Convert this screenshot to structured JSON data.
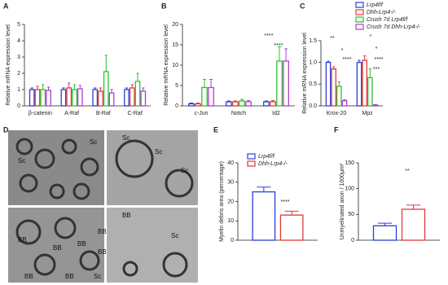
{
  "chart_data": [
    {
      "type": "bar",
      "panel": "A",
      "ylabel": "Relative mRNA expression level",
      "categories": [
        "β-catenin",
        "A-Raf",
        "B-Raf",
        "C-Raf"
      ],
      "series": [
        {
          "color": "#2b3fd6",
          "values": [
            1.0,
            1.0,
            1.0,
            1.0
          ],
          "errors": [
            0.1,
            0.1,
            0.1,
            0.1
          ]
        },
        {
          "color": "#e03a3a",
          "values": [
            1.0,
            1.1,
            0.9,
            1.1
          ],
          "errors": [
            0.2,
            0.3,
            0.2,
            0.2
          ]
        },
        {
          "color": "#2fbf2f",
          "values": [
            1.0,
            1.0,
            2.1,
            1.5
          ],
          "errors": [
            0.3,
            0.3,
            1.0,
            0.5
          ]
        },
        {
          "color": "#b03cd0",
          "values": [
            0.95,
            1.05,
            0.8,
            0.9
          ],
          "errors": [
            0.2,
            0.2,
            0.2,
            0.2
          ]
        }
      ],
      "ylim": [
        0,
        5
      ],
      "yticks": [
        0,
        1,
        2,
        3,
        4,
        5
      ]
    },
    {
      "type": "bar",
      "panel": "B",
      "ylabel": "Relative mRNA expression level",
      "categories": [
        "c-Jun",
        "Notch",
        "Id2"
      ],
      "series": [
        {
          "color": "#2b3fd6",
          "values": [
            0.5,
            1.0,
            1.0
          ],
          "errors": [
            0.2,
            0.2,
            0.2
          ]
        },
        {
          "color": "#e03a3a",
          "values": [
            0.5,
            1.0,
            1.0
          ],
          "errors": [
            0.2,
            0.2,
            0.3
          ]
        },
        {
          "color": "#2fbf2f",
          "values": [
            4.5,
            1.2,
            11.0
          ],
          "errors": [
            2.0,
            0.4,
            3.5
          ]
        },
        {
          "color": "#b03cd0",
          "values": [
            4.5,
            1.0,
            11.0
          ],
          "errors": [
            2.0,
            0.3,
            3.0
          ]
        }
      ],
      "ylim": [
        0,
        20
      ],
      "yticks": [
        0,
        5,
        10,
        15,
        20
      ],
      "annotations": [
        "****",
        "****"
      ]
    },
    {
      "type": "bar",
      "panel": "C",
      "ylabel": "Relative mRNA expression level",
      "categories": [
        "Krox-20",
        "Mpz"
      ],
      "series": [
        {
          "name": "Lrp4f/f",
          "color": "#2b3fd6",
          "values": [
            1.0,
            1.0
          ],
          "errors": [
            0.03,
            0.05
          ]
        },
        {
          "name": "Dhh-Lrp4-/-",
          "color": "#e03a3a",
          "values": [
            0.85,
            1.05
          ],
          "errors": [
            0.05,
            0.1
          ]
        },
        {
          "name": "Crush 7d Lrp4f/f",
          "color": "#2fbf2f",
          "values": [
            0.45,
            0.65
          ],
          "errors": [
            0.1,
            0.2
          ]
        },
        {
          "name": "Crush 7d Dhh-Lrp4-/-",
          "color": "#b03cd0",
          "values": [
            0.12,
            0.02
          ],
          "errors": [
            0.02,
            0.01
          ]
        }
      ],
      "ylim": [
        0,
        1.5
      ],
      "yticks": [
        {
          "value": 0,
          "label": "0.0"
        },
        0.5,
        {
          "value": 1,
          "label": "1.0"
        },
        1.5
      ],
      "legend": "upper right",
      "annotations": [
        "**",
        "*",
        "****",
        "*",
        "*",
        "****",
        "***"
      ]
    },
    {
      "type": "bar",
      "panel": "E",
      "ylabel": "Myelin debris area (percentage)",
      "categories": [
        null
      ],
      "series": [
        {
          "name": "Lrp4f/f",
          "color": "#2b3fd6",
          "values": [
            25
          ],
          "errors": [
            2.5
          ]
        },
        {
          "name": "Dhh-Lrp4-/-",
          "color": "#e03a3a",
          "values": [
            13
          ],
          "errors": [
            2
          ]
        }
      ],
      "ylim": [
        0,
        40
      ],
      "yticks": [
        0,
        10,
        20,
        30,
        40
      ],
      "legend": "upper center",
      "annotations": [
        "****"
      ]
    },
    {
      "type": "bar",
      "panel": "F",
      "ylabel": "Unmyelinated axon / 1000μm²",
      "categories": [
        null
      ],
      "series": [
        {
          "color": "#2b3fd6",
          "values": [
            28
          ],
          "errors": [
            5
          ]
        },
        {
          "color": "#e03a3a",
          "values": [
            60
          ],
          "errors": [
            8
          ]
        }
      ],
      "ylim": [
        0,
        150
      ],
      "yticks": [
        0,
        50,
        100,
        150
      ],
      "annotations": [
        "**"
      ]
    }
  ],
  "micrograph": {
    "panel": "D",
    "labels": [
      "Sc",
      "Sc",
      "Sc",
      "Sc",
      "Sc",
      "BB",
      "BB",
      "BB",
      "BB",
      "BB",
      "BB",
      "BB",
      "Sc",
      "BB",
      "Sc"
    ]
  }
}
